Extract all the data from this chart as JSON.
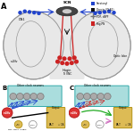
{
  "bg_color": "#ffffff",
  "brain_color": "#e8e8e8",
  "brain_edge": "#999999",
  "blue": "#2244cc",
  "red": "#cc2222",
  "black": "#111111",
  "green": "#22aa22",
  "pink": "#cc66bb",
  "gray_neuron": "#aaaaaa",
  "teal_fill": "#aadddd",
  "teal_edge": "#33aaaa",
  "gold_fill": "#ddbb55",
  "gold_edge": "#aa8800",
  "slnv_fill": "#dd3333",
  "slnv_edge": "#aa1111"
}
